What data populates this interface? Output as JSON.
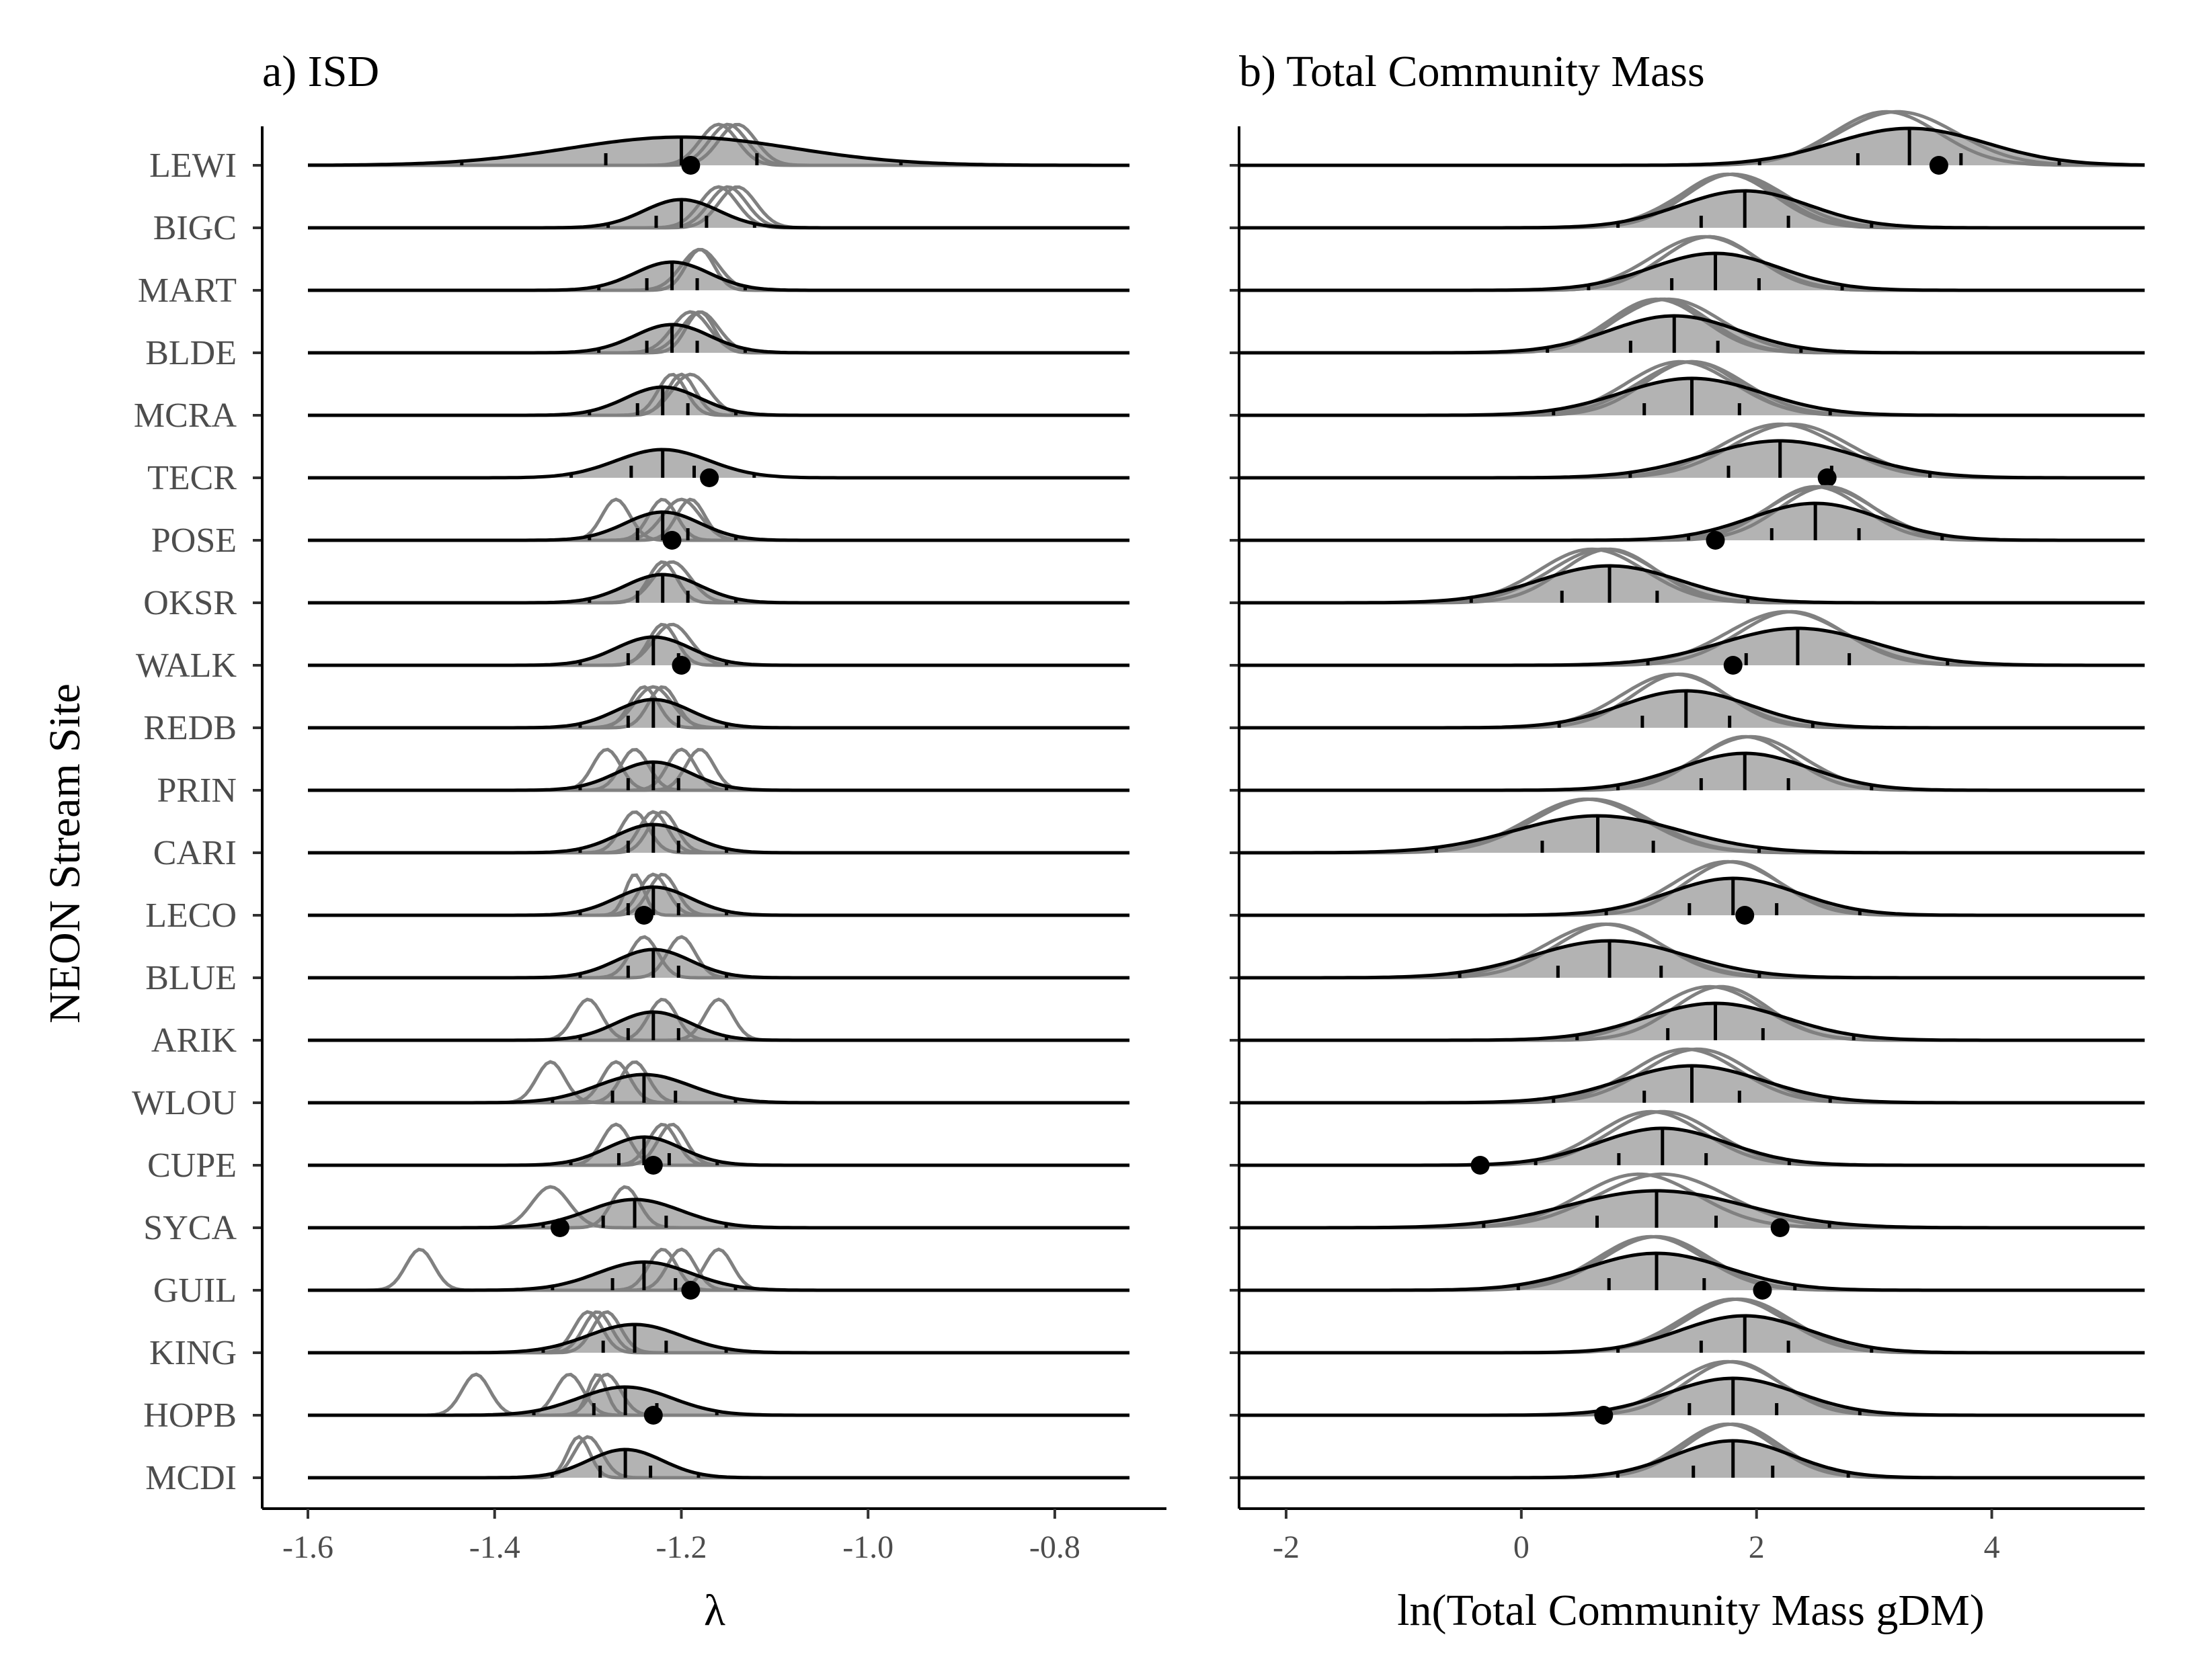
{
  "y_axis_title": "NEON Stream Site",
  "sites": [
    "LEWI",
    "BIGC",
    "MART",
    "BLDE",
    "MCRA",
    "TECR",
    "POSE",
    "OKSR",
    "WALK",
    "REDB",
    "PRIN",
    "CARI",
    "LECO",
    "BLUE",
    "ARIK",
    "WLOU",
    "CUPE",
    "SYCA",
    "GUIL",
    "KING",
    "HOPB",
    "MCDI"
  ],
  "colors": {
    "fill": "#b3b3b3",
    "replicate_line": "#808080",
    "main_line": "#000000",
    "point": "#000000",
    "label": "#4d4d4d"
  },
  "chart_data": [
    {
      "panel": "a",
      "type": "ridgeline",
      "title": "a) ISD",
      "xlabel": "λ",
      "xlim": [
        -1.6,
        -0.72
      ],
      "xticks": [
        -1.6,
        -1.4,
        -1.2,
        -1.0,
        -0.8
      ],
      "xtick_labels": [
        "-1.6",
        "-1.4",
        "-1.2",
        "-1.0",
        "-0.8"
      ],
      "quantiles": [
        0.025,
        0.25,
        0.5,
        0.75,
        0.975
      ],
      "ridges": [
        {
          "site": "LEWI",
          "mean": -1.2,
          "sd": 0.12,
          "obs": -1.19,
          "reps": [
            [
              -1.16,
              0.02
            ],
            [
              -1.15,
              0.02
            ],
            [
              -1.14,
              0.02
            ]
          ]
        },
        {
          "site": "BIGC",
          "mean": -1.2,
          "sd": 0.04,
          "obs": null,
          "reps": [
            [
              -1.16,
              0.02
            ],
            [
              -1.15,
              0.02
            ],
            [
              -1.14,
              0.02
            ]
          ]
        },
        {
          "site": "MART",
          "mean": -1.21,
          "sd": 0.04,
          "obs": null,
          "reps": [
            [
              -1.18,
              0.015
            ],
            [
              -1.18,
              0.02
            ]
          ]
        },
        {
          "site": "BLDE",
          "mean": -1.21,
          "sd": 0.04,
          "obs": null,
          "reps": [
            [
              -1.19,
              0.02
            ],
            [
              -1.18,
              0.02
            ],
            [
              -1.18,
              0.015
            ]
          ]
        },
        {
          "site": "MCRA",
          "mean": -1.22,
          "sd": 0.04,
          "obs": null,
          "reps": [
            [
              -1.21,
              0.015
            ],
            [
              -1.2,
              0.015
            ],
            [
              -1.19,
              0.02
            ]
          ]
        },
        {
          "site": "TECR",
          "mean": -1.22,
          "sd": 0.05,
          "obs": -1.17,
          "reps": []
        },
        {
          "site": "POSE",
          "mean": -1.22,
          "sd": 0.04,
          "obs": -1.21,
          "reps": [
            [
              -1.27,
              0.015
            ],
            [
              -1.22,
              0.015
            ],
            [
              -1.2,
              0.02
            ],
            [
              -1.19,
              0.015
            ]
          ]
        },
        {
          "site": "OKSR",
          "mean": -1.22,
          "sd": 0.04,
          "obs": null,
          "reps": [
            [
              -1.22,
              0.015
            ],
            [
              -1.21,
              0.02
            ]
          ]
        },
        {
          "site": "WALK",
          "mean": -1.23,
          "sd": 0.04,
          "obs": -1.2,
          "reps": [
            [
              -1.22,
              0.015
            ],
            [
              -1.21,
              0.02
            ]
          ]
        },
        {
          "site": "REDB",
          "mean": -1.23,
          "sd": 0.04,
          "obs": null,
          "reps": [
            [
              -1.24,
              0.015
            ],
            [
              -1.23,
              0.02
            ],
            [
              -1.22,
              0.015
            ]
          ]
        },
        {
          "site": "PRIN",
          "mean": -1.23,
          "sd": 0.04,
          "obs": null,
          "reps": [
            [
              -1.28,
              0.015
            ],
            [
              -1.25,
              0.015
            ],
            [
              -1.2,
              0.015
            ],
            [
              -1.18,
              0.015
            ]
          ]
        },
        {
          "site": "CARI",
          "mean": -1.23,
          "sd": 0.04,
          "obs": null,
          "reps": [
            [
              -1.25,
              0.015
            ],
            [
              -1.23,
              0.015
            ],
            [
              -1.22,
              0.015
            ]
          ]
        },
        {
          "site": "LECO",
          "mean": -1.23,
          "sd": 0.04,
          "obs": -1.24,
          "reps": [
            [
              -1.25,
              0.01
            ],
            [
              -1.23,
              0.015
            ],
            [
              -1.22,
              0.015
            ]
          ]
        },
        {
          "site": "BLUE",
          "mean": -1.23,
          "sd": 0.04,
          "obs": null,
          "reps": [
            [
              -1.24,
              0.015
            ],
            [
              -1.2,
              0.015
            ]
          ]
        },
        {
          "site": "ARIK",
          "mean": -1.23,
          "sd": 0.04,
          "obs": null,
          "reps": [
            [
              -1.3,
              0.015
            ],
            [
              -1.22,
              0.015
            ],
            [
              -1.16,
              0.015
            ]
          ]
        },
        {
          "site": "WLOU",
          "mean": -1.24,
          "sd": 0.05,
          "obs": null,
          "reps": [
            [
              -1.34,
              0.015
            ],
            [
              -1.27,
              0.015
            ],
            [
              -1.25,
              0.015
            ]
          ]
        },
        {
          "site": "CUPE",
          "mean": -1.24,
          "sd": 0.04,
          "obs": -1.23,
          "reps": [
            [
              -1.27,
              0.015
            ],
            [
              -1.22,
              0.015
            ],
            [
              -1.21,
              0.015
            ]
          ]
        },
        {
          "site": "SYCA",
          "mean": -1.25,
          "sd": 0.05,
          "obs": -1.33,
          "reps": [
            [
              -1.34,
              0.02
            ],
            [
              -1.26,
              0.015
            ]
          ]
        },
        {
          "site": "GUIL",
          "mean": -1.24,
          "sd": 0.05,
          "obs": -1.19,
          "reps": [
            [
              -1.48,
              0.015
            ],
            [
              -1.22,
              0.015
            ],
            [
              -1.2,
              0.015
            ],
            [
              -1.16,
              0.015
            ]
          ]
        },
        {
          "site": "KING",
          "mean": -1.25,
          "sd": 0.05,
          "obs": null,
          "reps": [
            [
              -1.3,
              0.015
            ],
            [
              -1.29,
              0.015
            ],
            [
              -1.28,
              0.015
            ]
          ]
        },
        {
          "site": "HOPB",
          "mean": -1.26,
          "sd": 0.05,
          "obs": -1.23,
          "reps": [
            [
              -1.42,
              0.015
            ],
            [
              -1.32,
              0.015
            ],
            [
              -1.29,
              0.01
            ],
            [
              -1.28,
              0.015
            ]
          ]
        },
        {
          "site": "MCDI",
          "mean": -1.26,
          "sd": 0.04,
          "obs": null,
          "reps": [
            [
              -1.31,
              0.012
            ],
            [
              -1.3,
              0.015
            ]
          ]
        }
      ]
    },
    {
      "panel": "b",
      "type": "ridgeline",
      "title": "b) Total Community Mass",
      "xlabel": "ln(Total Community Mass gDM)",
      "xlim": [
        -2.4,
        5.3
      ],
      "xticks": [
        -2,
        0,
        2,
        4
      ],
      "xtick_labels": [
        "-2",
        "0",
        "2",
        "4"
      ],
      "quantiles": [
        0.025,
        0.25,
        0.5,
        0.75,
        0.975
      ],
      "ridges": [
        {
          "site": "LEWI",
          "mean": 3.3,
          "sd": 0.65,
          "obs": 3.55,
          "reps": [
            [
              3.1,
              0.45
            ],
            [
              3.2,
              0.5
            ]
          ]
        },
        {
          "site": "BIGC",
          "mean": 1.9,
          "sd": 0.55,
          "obs": null,
          "reps": [
            [
              1.8,
              0.4
            ],
            [
              1.8,
              0.45
            ],
            [
              1.75,
              0.4
            ]
          ]
        },
        {
          "site": "MART",
          "mean": 1.65,
          "sd": 0.55,
          "obs": null,
          "reps": [
            [
              1.6,
              0.4
            ],
            [
              1.55,
              0.45
            ],
            [
              1.6,
              0.4
            ]
          ]
        },
        {
          "site": "BLDE",
          "mean": 1.3,
          "sd": 0.55,
          "obs": null,
          "reps": [
            [
              1.2,
              0.4
            ],
            [
              1.25,
              0.45
            ],
            [
              1.15,
              0.4
            ]
          ]
        },
        {
          "site": "MCRA",
          "mean": 1.45,
          "sd": 0.6,
          "obs": null,
          "reps": [
            [
              1.45,
              0.45
            ],
            [
              1.35,
              0.45
            ],
            [
              1.45,
              0.4
            ]
          ]
        },
        {
          "site": "TECR",
          "mean": 2.2,
          "sd": 0.65,
          "obs": 2.6,
          "reps": [
            [
              2.2,
              0.5
            ],
            [
              2.3,
              0.5
            ]
          ]
        },
        {
          "site": "POSE",
          "mean": 2.5,
          "sd": 0.55,
          "obs": 1.65,
          "reps": [
            [
              2.6,
              0.4
            ],
            [
              2.55,
              0.45
            ],
            [
              2.5,
              0.4
            ]
          ]
        },
        {
          "site": "OKSR",
          "mean": 0.75,
          "sd": 0.6,
          "obs": null,
          "reps": [
            [
              0.7,
              0.45
            ],
            [
              0.6,
              0.45
            ],
            [
              0.75,
              0.4
            ]
          ]
        },
        {
          "site": "WALK",
          "mean": 2.35,
          "sd": 0.65,
          "obs": 1.8,
          "reps": [
            [
              2.3,
              0.45
            ],
            [
              2.25,
              0.5
            ]
          ]
        },
        {
          "site": "REDB",
          "mean": 1.4,
          "sd": 0.55,
          "obs": null,
          "reps": [
            [
              1.35,
              0.4
            ],
            [
              1.3,
              0.45
            ]
          ]
        },
        {
          "site": "PRIN",
          "mean": 1.9,
          "sd": 0.55,
          "obs": null,
          "reps": [
            [
              1.9,
              0.4
            ],
            [
              1.95,
              0.45
            ]
          ]
        },
        {
          "site": "CARI",
          "mean": 0.65,
          "sd": 0.7,
          "obs": null,
          "reps": [
            [
              0.6,
              0.5
            ],
            [
              0.55,
              0.5
            ]
          ]
        },
        {
          "site": "LECO",
          "mean": 1.8,
          "sd": 0.55,
          "obs": 1.9,
          "reps": [
            [
              1.8,
              0.4
            ],
            [
              1.75,
              0.45
            ]
          ]
        },
        {
          "site": "BLUE",
          "mean": 0.75,
          "sd": 0.65,
          "obs": null,
          "reps": [
            [
              0.75,
              0.45
            ],
            [
              0.7,
              0.5
            ]
          ]
        },
        {
          "site": "ARIK",
          "mean": 1.65,
          "sd": 0.6,
          "obs": null,
          "reps": [
            [
              1.6,
              0.45
            ],
            [
              1.7,
              0.4
            ]
          ]
        },
        {
          "site": "WLOU",
          "mean": 1.45,
          "sd": 0.6,
          "obs": null,
          "reps": [
            [
              1.4,
              0.45
            ],
            [
              1.5,
              0.45
            ]
          ]
        },
        {
          "site": "CUPE",
          "mean": 1.2,
          "sd": 0.55,
          "obs": -0.35,
          "reps": [
            [
              1.2,
              0.45
            ],
            [
              1.1,
              0.45
            ]
          ]
        },
        {
          "site": "SYCA",
          "mean": 1.15,
          "sd": 0.75,
          "obs": 2.2,
          "reps": [
            [
              1.0,
              0.5
            ],
            [
              1.2,
              0.55
            ]
          ]
        },
        {
          "site": "GUIL",
          "mean": 1.15,
          "sd": 0.6,
          "obs": 2.05,
          "reps": [
            [
              1.15,
              0.45
            ],
            [
              1.1,
              0.45
            ]
          ]
        },
        {
          "site": "KING",
          "mean": 1.9,
          "sd": 0.55,
          "obs": null,
          "reps": [
            [
              1.85,
              0.45
            ],
            [
              1.8,
              0.45
            ]
          ]
        },
        {
          "site": "HOPB",
          "mean": 1.8,
          "sd": 0.55,
          "obs": 0.7,
          "reps": [
            [
              1.8,
              0.4
            ],
            [
              1.75,
              0.45
            ]
          ]
        },
        {
          "site": "MCDI",
          "mean": 1.8,
          "sd": 0.5,
          "obs": null,
          "reps": [
            [
              1.75,
              0.4
            ],
            [
              1.8,
              0.4
            ]
          ]
        }
      ]
    }
  ]
}
